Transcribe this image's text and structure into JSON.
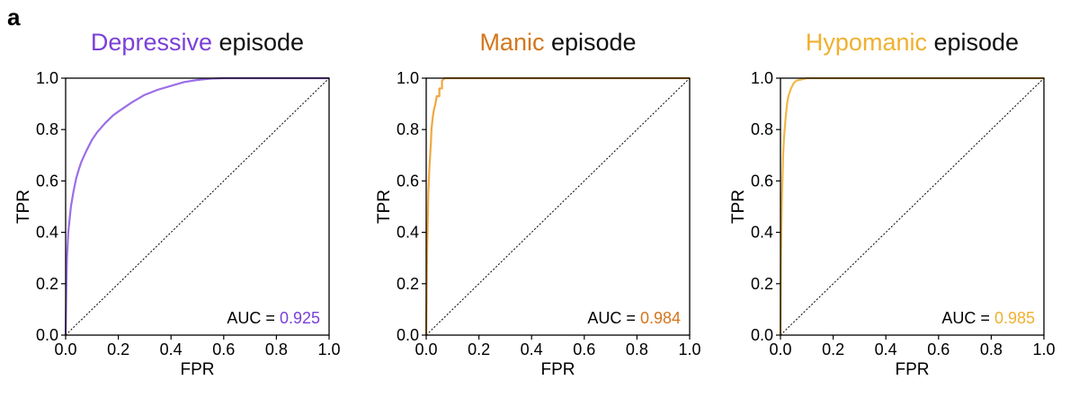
{
  "panel_letter": "a",
  "chart_data": [
    {
      "type": "line",
      "title": {
        "colored": "Depressive",
        "rest": "episode",
        "color": "#7a40d8"
      },
      "xlabel": "FPR",
      "ylabel": "TPR",
      "xlim": [
        0,
        1
      ],
      "ylim": [
        0,
        1
      ],
      "xticks": [
        "0.0",
        "0.2",
        "0.4",
        "0.6",
        "0.8",
        "1.0"
      ],
      "yticks": [
        "0.0",
        "0.2",
        "0.4",
        "0.6",
        "0.8",
        "1.0"
      ],
      "auc": {
        "label": "AUC =",
        "value": "0.925",
        "color": "#7a40d8"
      },
      "diagonal": true,
      "series": [
        {
          "color": "#9b6ee8",
          "x": [
            0,
            0.003,
            0.005,
            0.01,
            0.015,
            0.02,
            0.03,
            0.04,
            0.05,
            0.06,
            0.08,
            0.1,
            0.12,
            0.15,
            0.18,
            0.2,
            0.25,
            0.3,
            0.35,
            0.4,
            0.45,
            0.5,
            0.55,
            0.6,
            0.7,
            0.8,
            0.9,
            1.0
          ],
          "y": [
            0,
            0.2,
            0.3,
            0.4,
            0.45,
            0.5,
            0.56,
            0.61,
            0.645,
            0.675,
            0.72,
            0.76,
            0.79,
            0.825,
            0.855,
            0.87,
            0.905,
            0.935,
            0.955,
            0.97,
            0.985,
            0.993,
            0.998,
            1.0,
            1.0,
            1.0,
            1.0,
            1.0
          ]
        }
      ]
    },
    {
      "type": "line",
      "title": {
        "colored": "Manic",
        "rest": "episode",
        "color": "#d4761c"
      },
      "xlabel": "FPR",
      "ylabel": "TPR",
      "xlim": [
        0,
        1
      ],
      "ylim": [
        0,
        1
      ],
      "xticks": [
        "0.0",
        "0.2",
        "0.4",
        "0.6",
        "0.8",
        "1.0"
      ],
      "yticks": [
        "0.0",
        "0.2",
        "0.4",
        "0.6",
        "0.8",
        "1.0"
      ],
      "auc": {
        "label": "AUC =",
        "value": "0.984",
        "color": "#d4761c"
      },
      "diagonal": true,
      "series": [
        {
          "color": "#f0a840",
          "x": [
            0,
            0.003,
            0.005,
            0.008,
            0.01,
            0.012,
            0.015,
            0.018,
            0.02,
            0.025,
            0.03,
            0.035,
            0.04,
            0.05,
            0.05,
            0.06,
            0.06,
            0.07,
            0.08,
            1.0
          ],
          "y": [
            0,
            0.3,
            0.4,
            0.55,
            0.6,
            0.65,
            0.7,
            0.75,
            0.8,
            0.85,
            0.88,
            0.9,
            0.93,
            0.93,
            0.96,
            0.96,
            0.99,
            1.0,
            1.0,
            1.0
          ]
        }
      ]
    },
    {
      "type": "line",
      "title": {
        "colored": "Hypomanic",
        "rest": "episode",
        "color": "#f0b030"
      },
      "xlabel": "FPR",
      "ylabel": "TPR",
      "xlim": [
        0,
        1
      ],
      "ylim": [
        0,
        1
      ],
      "xticks": [
        "0.0",
        "0.2",
        "0.4",
        "0.6",
        "0.8",
        "1.0"
      ],
      "yticks": [
        "0.0",
        "0.2",
        "0.4",
        "0.6",
        "0.8",
        "1.0"
      ],
      "auc": {
        "label": "AUC =",
        "value": "0.985",
        "color": "#f0b030"
      },
      "diagonal": true,
      "series": [
        {
          "color": "#f0b848",
          "x": [
            0,
            0.002,
            0.004,
            0.006,
            0.008,
            0.01,
            0.013,
            0.016,
            0.02,
            0.025,
            0.03,
            0.04,
            0.05,
            0.06,
            0.08,
            0.1,
            0.12,
            1.0
          ],
          "y": [
            0,
            0.3,
            0.45,
            0.55,
            0.62,
            0.7,
            0.76,
            0.8,
            0.85,
            0.9,
            0.93,
            0.96,
            0.98,
            0.99,
            0.995,
            1.0,
            1.0,
            1.0
          ]
        }
      ]
    }
  ]
}
